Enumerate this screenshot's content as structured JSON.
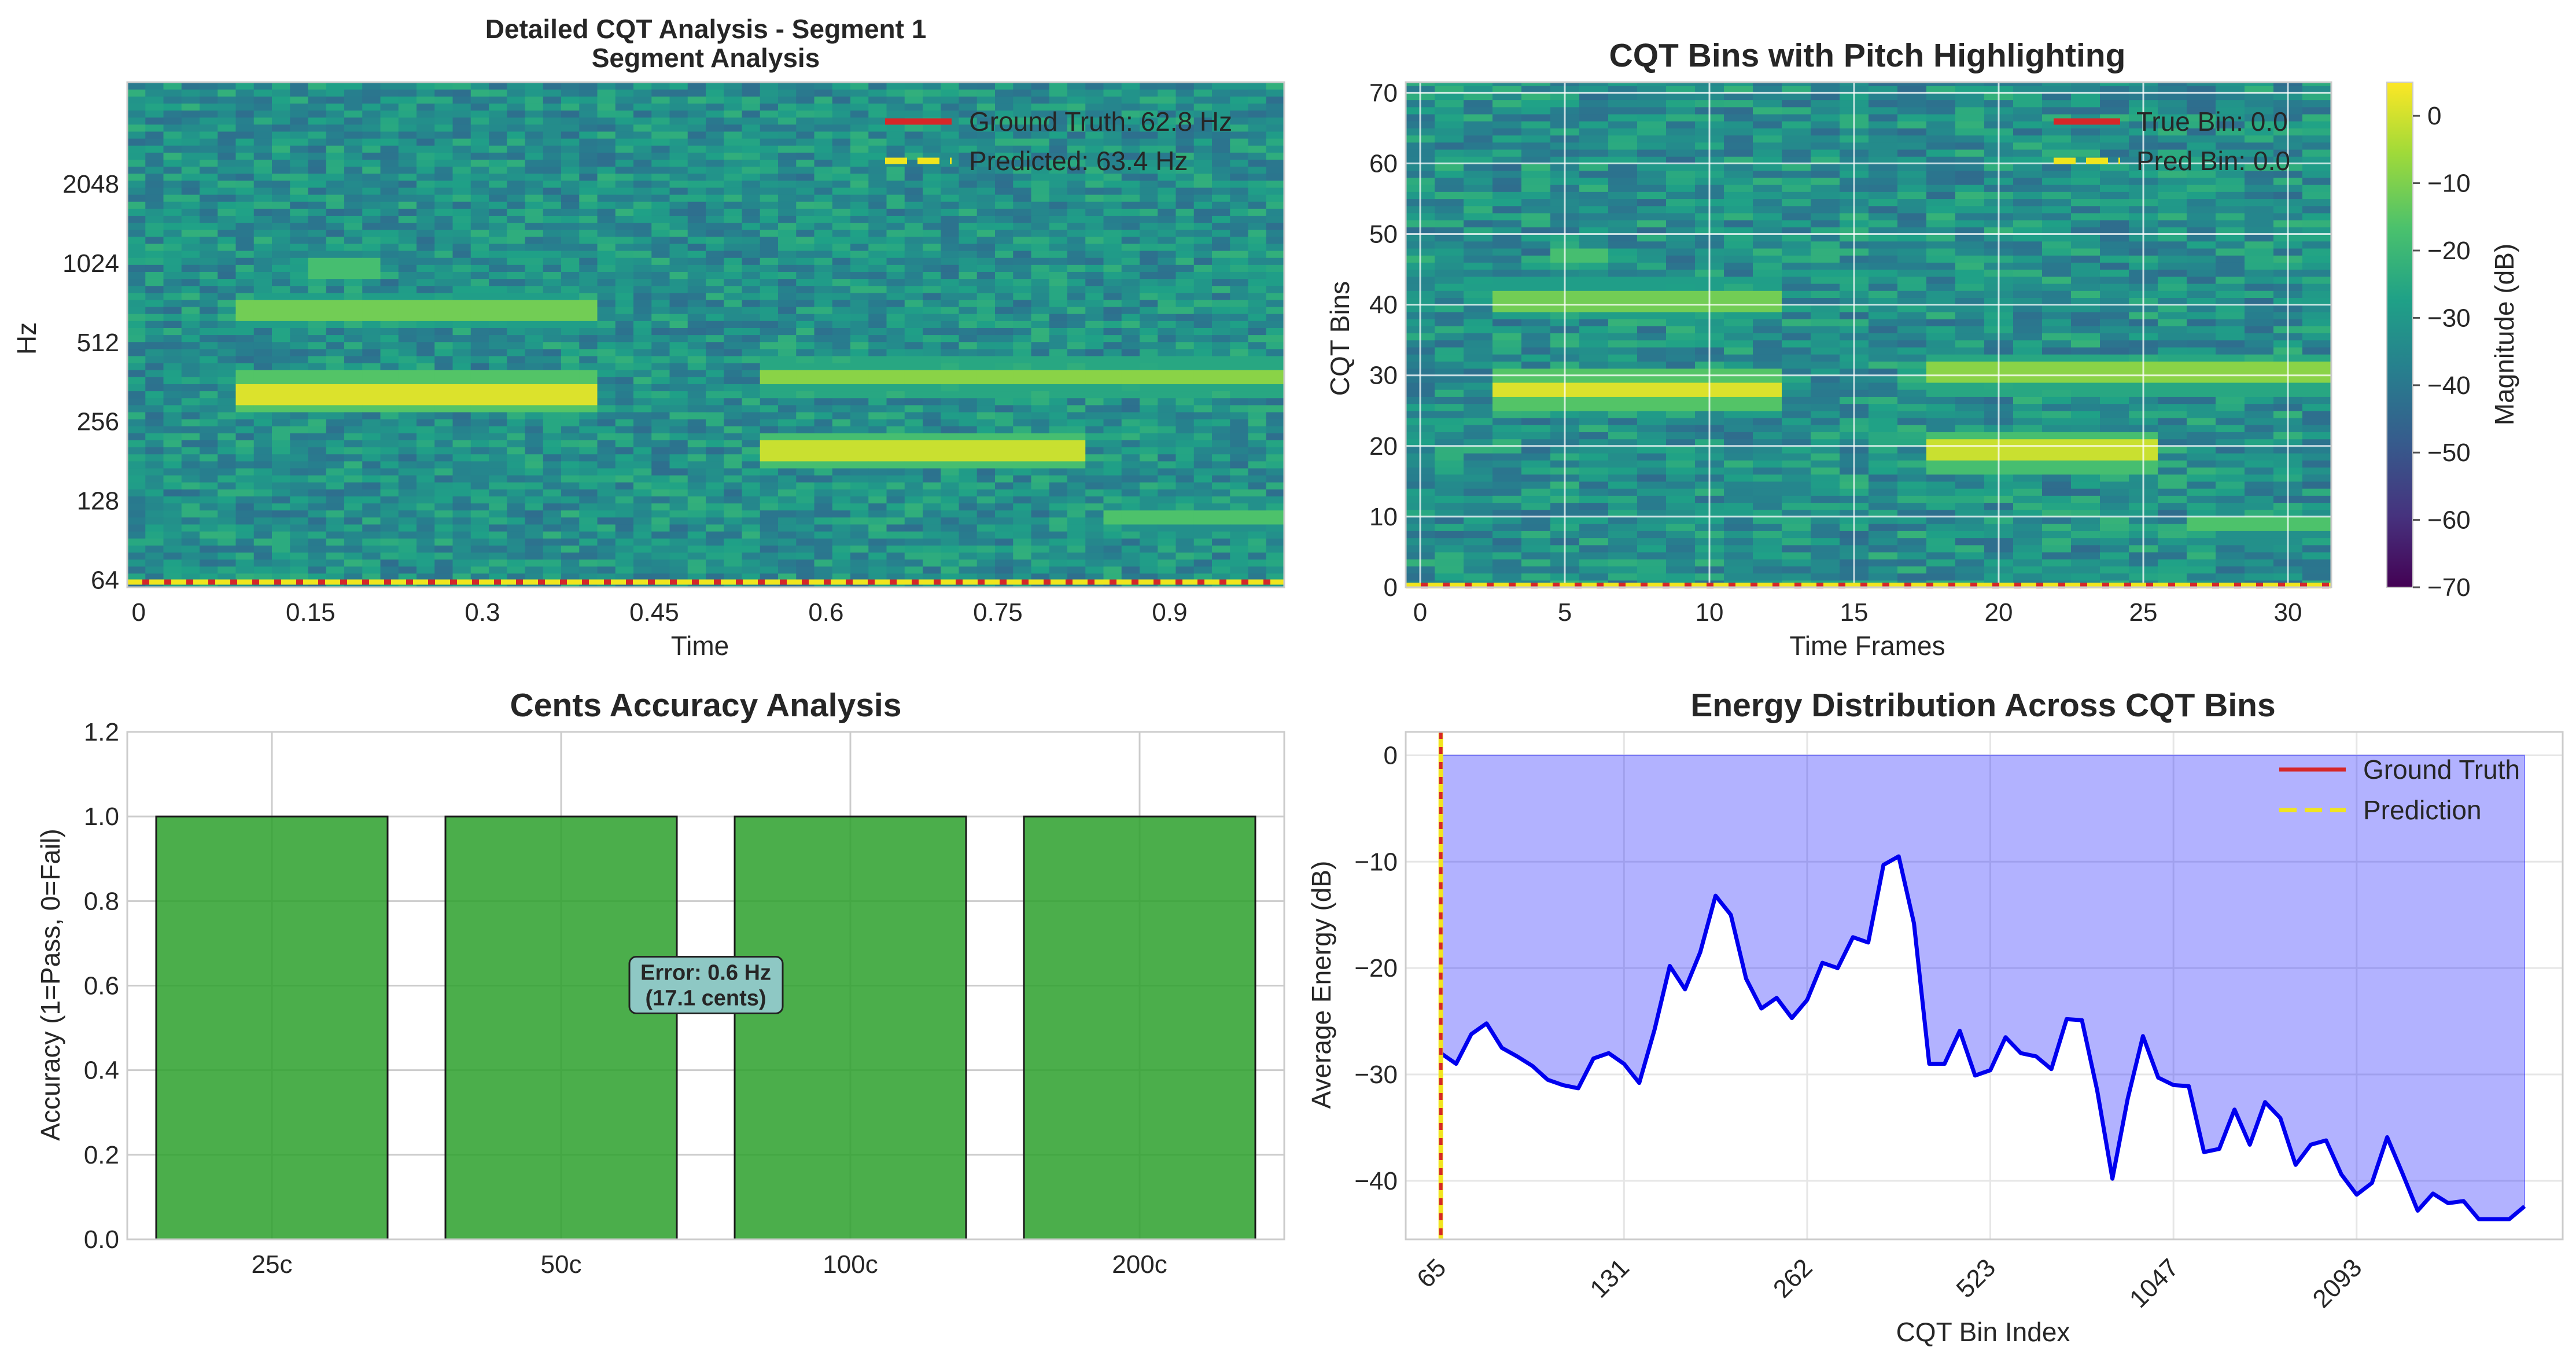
{
  "chart_data": [
    {
      "type": "heatmap",
      "title": "Detailed CQT Analysis - Segment 1",
      "subtitle": "Segment Analysis",
      "xlabel": "Time",
      "ylabel": "Hz",
      "x_ticks": [
        "0",
        "0.15",
        "0.3",
        "0.45",
        "0.6",
        "0.75",
        "0.9"
      ],
      "x_tick_values": [
        0,
        0.15,
        0.3,
        0.45,
        0.6,
        0.75,
        0.9
      ],
      "xlim": [
        -0.01,
        1.0
      ],
      "y_ticks": [
        "64",
        "128",
        "256",
        "512",
        "1024",
        "2048"
      ],
      "y_scale": "log2",
      "ylim": [
        60,
        5000
      ],
      "legend": [
        {
          "label": "Ground Truth: 62.8 Hz",
          "value": 62.8,
          "color": "#d62728",
          "style": "solid"
        },
        {
          "label": "Predicted: 63.4 Hz",
          "value": 63.4,
          "color": "#f1e51d",
          "style": "dashed"
        }
      ],
      "colormap": "viridis",
      "bands_hz": [
        {
          "t0": 0.08,
          "t1": 0.4,
          "hz": 330,
          "level": 0.95
        },
        {
          "t0": 0.08,
          "t1": 0.4,
          "hz": 680,
          "level": 0.78
        },
        {
          "t0": 0.14,
          "t1": 0.21,
          "hz": 990,
          "level": 0.7
        },
        {
          "t0": 0.55,
          "t1": 0.82,
          "hz": 200,
          "level": 0.92
        },
        {
          "t0": 0.55,
          "t1": 1.0,
          "hz": 380,
          "level": 0.82
        },
        {
          "t0": 0.84,
          "t1": 1.0,
          "hz": 110,
          "level": 0.72
        }
      ]
    },
    {
      "type": "heatmap",
      "title": "CQT Bins with Pitch Highlighting",
      "xlabel": "Time Frames",
      "ylabel": "CQT Bins",
      "x_ticks": [
        "0",
        "5",
        "10",
        "15",
        "20",
        "25",
        "30"
      ],
      "x_tick_values": [
        0,
        5,
        10,
        15,
        20,
        25,
        30
      ],
      "xlim": [
        -0.5,
        31.5
      ],
      "y_ticks": [
        "0",
        "10",
        "20",
        "30",
        "40",
        "50",
        "60",
        "70"
      ],
      "y_tick_values": [
        0,
        10,
        20,
        30,
        40,
        50,
        60,
        70
      ],
      "ylim": [
        0,
        71.5
      ],
      "grid": true,
      "legend": [
        {
          "label": "True Bin: 0.0",
          "value": 0.0,
          "color": "#d62728",
          "style": "solid"
        },
        {
          "label": "Pred Bin: 0.0",
          "value": 0.0,
          "color": "#f1e51d",
          "style": "dashed"
        }
      ],
      "colorbar": {
        "label": "Magnitude (dB)",
        "ticks": [
          "0",
          "−10",
          "−20",
          "−30",
          "−40",
          "−50",
          "−60",
          "−70"
        ],
        "tick_values": [
          0,
          -10,
          -20,
          -30,
          -40,
          -50,
          -60,
          -70
        ],
        "range": [
          -70,
          5
        ]
      }
    },
    {
      "type": "bar",
      "title": "Cents Accuracy Analysis",
      "xlabel": "",
      "ylabel": "Accuracy (1=Pass, 0=Fail)",
      "categories": [
        "25c",
        "50c",
        "100c",
        "200c"
      ],
      "values": [
        1,
        1,
        1,
        1
      ],
      "ylim": [
        0,
        1.2
      ],
      "y_ticks": [
        "0.0",
        "0.2",
        "0.4",
        "0.6",
        "0.8",
        "1.0",
        "1.2"
      ],
      "y_tick_values": [
        0,
        0.2,
        0.4,
        0.6,
        0.8,
        1.0,
        1.2
      ],
      "bar_color": "#2ca02c",
      "grid": true,
      "annotation": {
        "line1": "Error: 0.6 Hz",
        "line2": "(17.1 cents)",
        "x": 1.5,
        "y": 0.6
      }
    },
    {
      "type": "area",
      "title": "Energy Distribution Across CQT Bins",
      "xlabel": "CQT Bin Index",
      "ylabel": "Average Energy (dB)",
      "x_tick_labels": [
        "65",
        "131",
        "262",
        "523",
        "1047",
        "2093"
      ],
      "x_tick_values": [
        0,
        12,
        24,
        36,
        48,
        60
      ],
      "xlim": [
        -2.3,
        73.5
      ],
      "ylim": [
        -45.5,
        2.2
      ],
      "y_ticks": [
        "0",
        "−10",
        "−20",
        "−30",
        "−40"
      ],
      "y_tick_values": [
        0,
        -10,
        -20,
        -30,
        -40
      ],
      "grid": true,
      "legend": [
        {
          "label": "Ground Truth",
          "color": "#d62728",
          "style": "solid"
        },
        {
          "label": "Prediction",
          "color": "#f1e51d",
          "style": "dashed"
        }
      ],
      "ground_truth_bin": 0,
      "prediction_bin": 0,
      "series": [
        {
          "values": [
            -28,
            -29,
            -26.2,
            -25.2,
            -27.5,
            -28.3,
            -29.2,
            -30.5,
            -31,
            -31.3,
            -28.5,
            -28,
            -29,
            -30.8,
            -25.8,
            -19.8,
            -22,
            -18.5,
            -13.2,
            -15,
            -21,
            -23.8,
            -22.8,
            -24.7,
            -23,
            -19.5,
            -20,
            -17.1,
            -17.6,
            -10.3,
            -9.5,
            -15.8,
            -29,
            -29,
            -25.9,
            -30.1,
            -29.6,
            -26.5,
            -28,
            -28.3,
            -29.5,
            -24.8,
            -24.9,
            -31.5,
            -39.8,
            -32.3,
            -26.4,
            -30.3,
            -31,
            -31.1,
            -37.3,
            -37,
            -33.3,
            -36.6,
            -32.6,
            -34.1,
            -38.5,
            -36.6,
            -36.2,
            -39.4,
            -41.3,
            -40.2,
            -35.9,
            -39.3,
            -42.8,
            -41.2,
            -42.1,
            -41.9,
            -43.6,
            -43.6,
            -43.6,
            -42.4
          ]
        }
      ]
    }
  ]
}
